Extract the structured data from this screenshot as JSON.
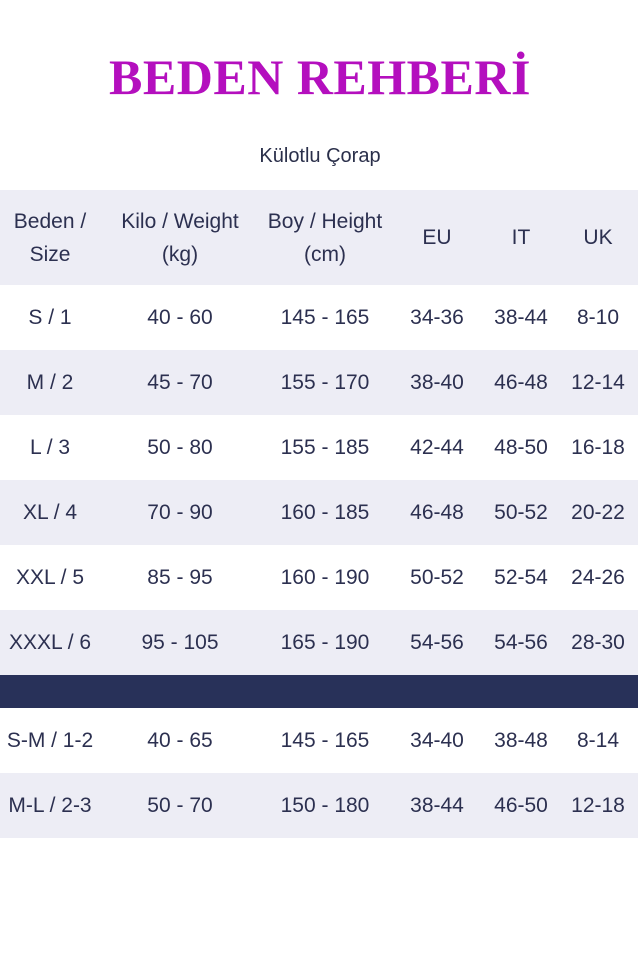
{
  "title": "BEDEN REHBERİ",
  "subtitle": "Külotlu Çorap",
  "colors": {
    "title": "#b40fbe",
    "divider": "#283159",
    "row_alt": "#ededf5",
    "text": "#2c3050"
  },
  "table": {
    "headers": [
      [
        "Beden /",
        "Size"
      ],
      [
        "Kilo / Weight",
        "(kg)"
      ],
      [
        "Boy / Height",
        "(cm)"
      ],
      [
        "EU",
        ""
      ],
      [
        "IT",
        ""
      ],
      [
        "UK",
        ""
      ]
    ],
    "rows": [
      [
        "S / 1",
        "40 - 60",
        "145 - 165",
        "34-36",
        "38-44",
        "8-10"
      ],
      [
        "M / 2",
        "45 - 70",
        "155 - 170",
        "38-40",
        "46-48",
        "12-14"
      ],
      [
        "L / 3",
        "50 - 80",
        "155 - 185",
        "42-44",
        "48-50",
        "16-18"
      ],
      [
        "XL / 4",
        "70 - 90",
        "160 - 185",
        "46-48",
        "50-52",
        "20-22"
      ],
      [
        "XXL / 5",
        "85 - 95",
        "160 - 190",
        "50-52",
        "52-54",
        "24-26"
      ],
      [
        "XXXL / 6",
        "95 - 105",
        "165 - 190",
        "54-56",
        "54-56",
        "28-30"
      ]
    ],
    "rows2": [
      [
        "S-M / 1-2",
        "40 - 65",
        "145 - 165",
        "34-40",
        "38-48",
        "8-14"
      ],
      [
        "M-L / 2-3",
        "50 - 70",
        "150 - 180",
        "38-44",
        "46-50",
        "12-18"
      ]
    ]
  }
}
